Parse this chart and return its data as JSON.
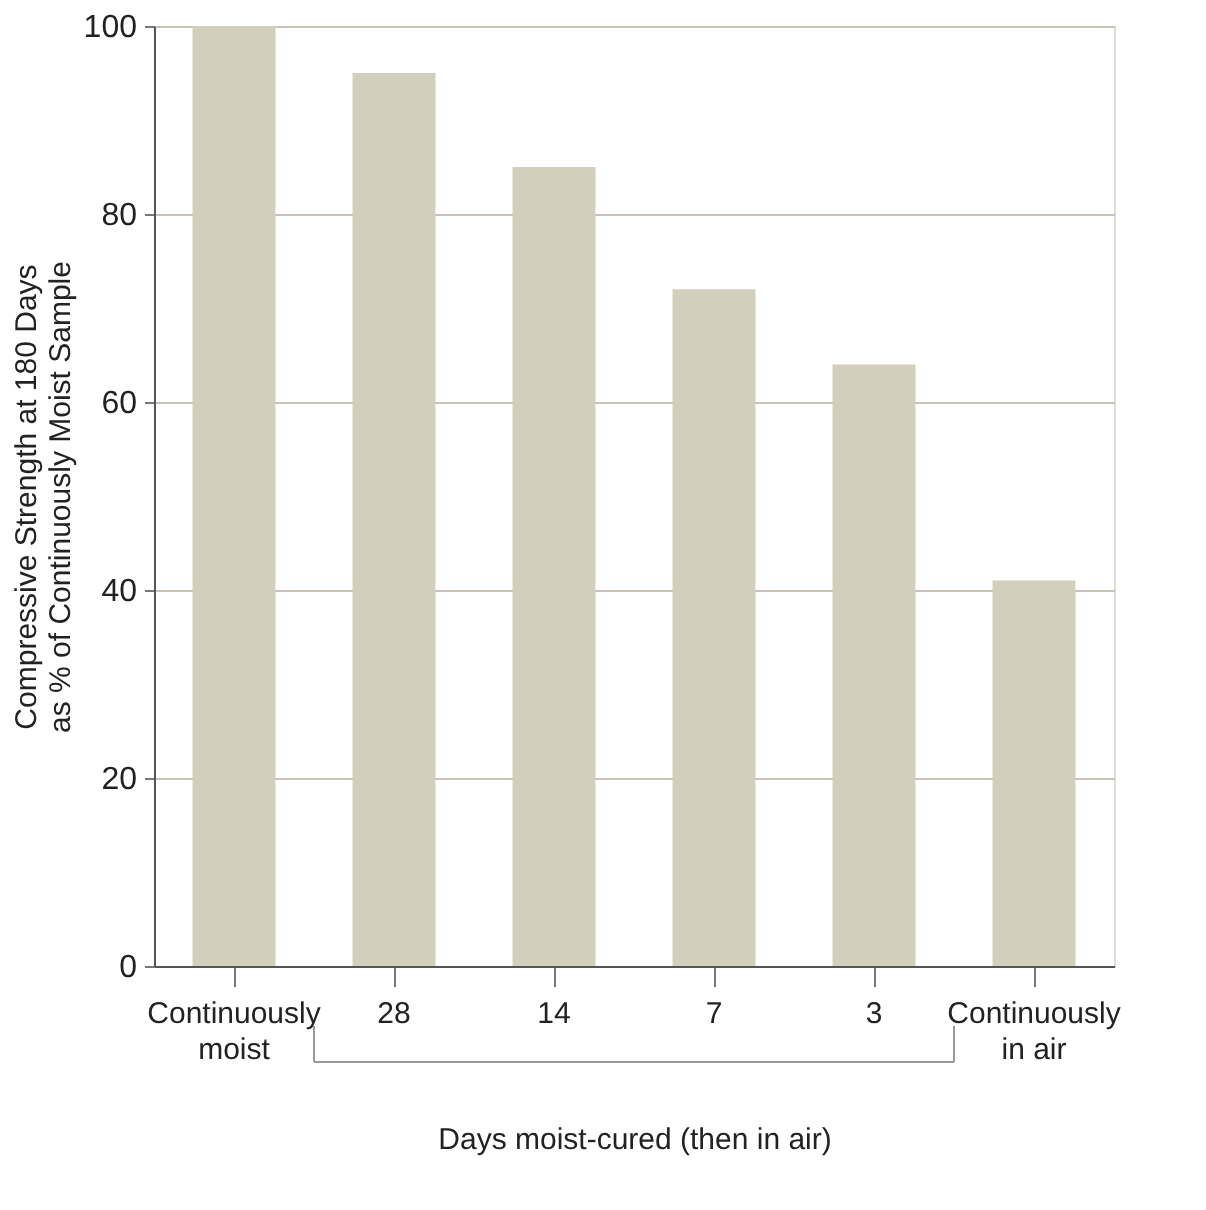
{
  "chart_data": {
    "type": "bar",
    "categories": [
      "Continuously moist",
      "28",
      "14",
      "7",
      "3",
      "Continuously in air"
    ],
    "values": [
      100,
      95,
      85,
      72,
      64,
      41
    ],
    "color": "#d3cfbd",
    "xlabel": "Days moist-cured (then in air)",
    "ylabel": "Compressive Strength at 180 Days as % of Continuously Moist Sample",
    "ylim": [
      0,
      100
    ],
    "yticks": [
      0,
      20,
      40,
      60,
      80,
      100
    ],
    "grid": "y"
  }
}
